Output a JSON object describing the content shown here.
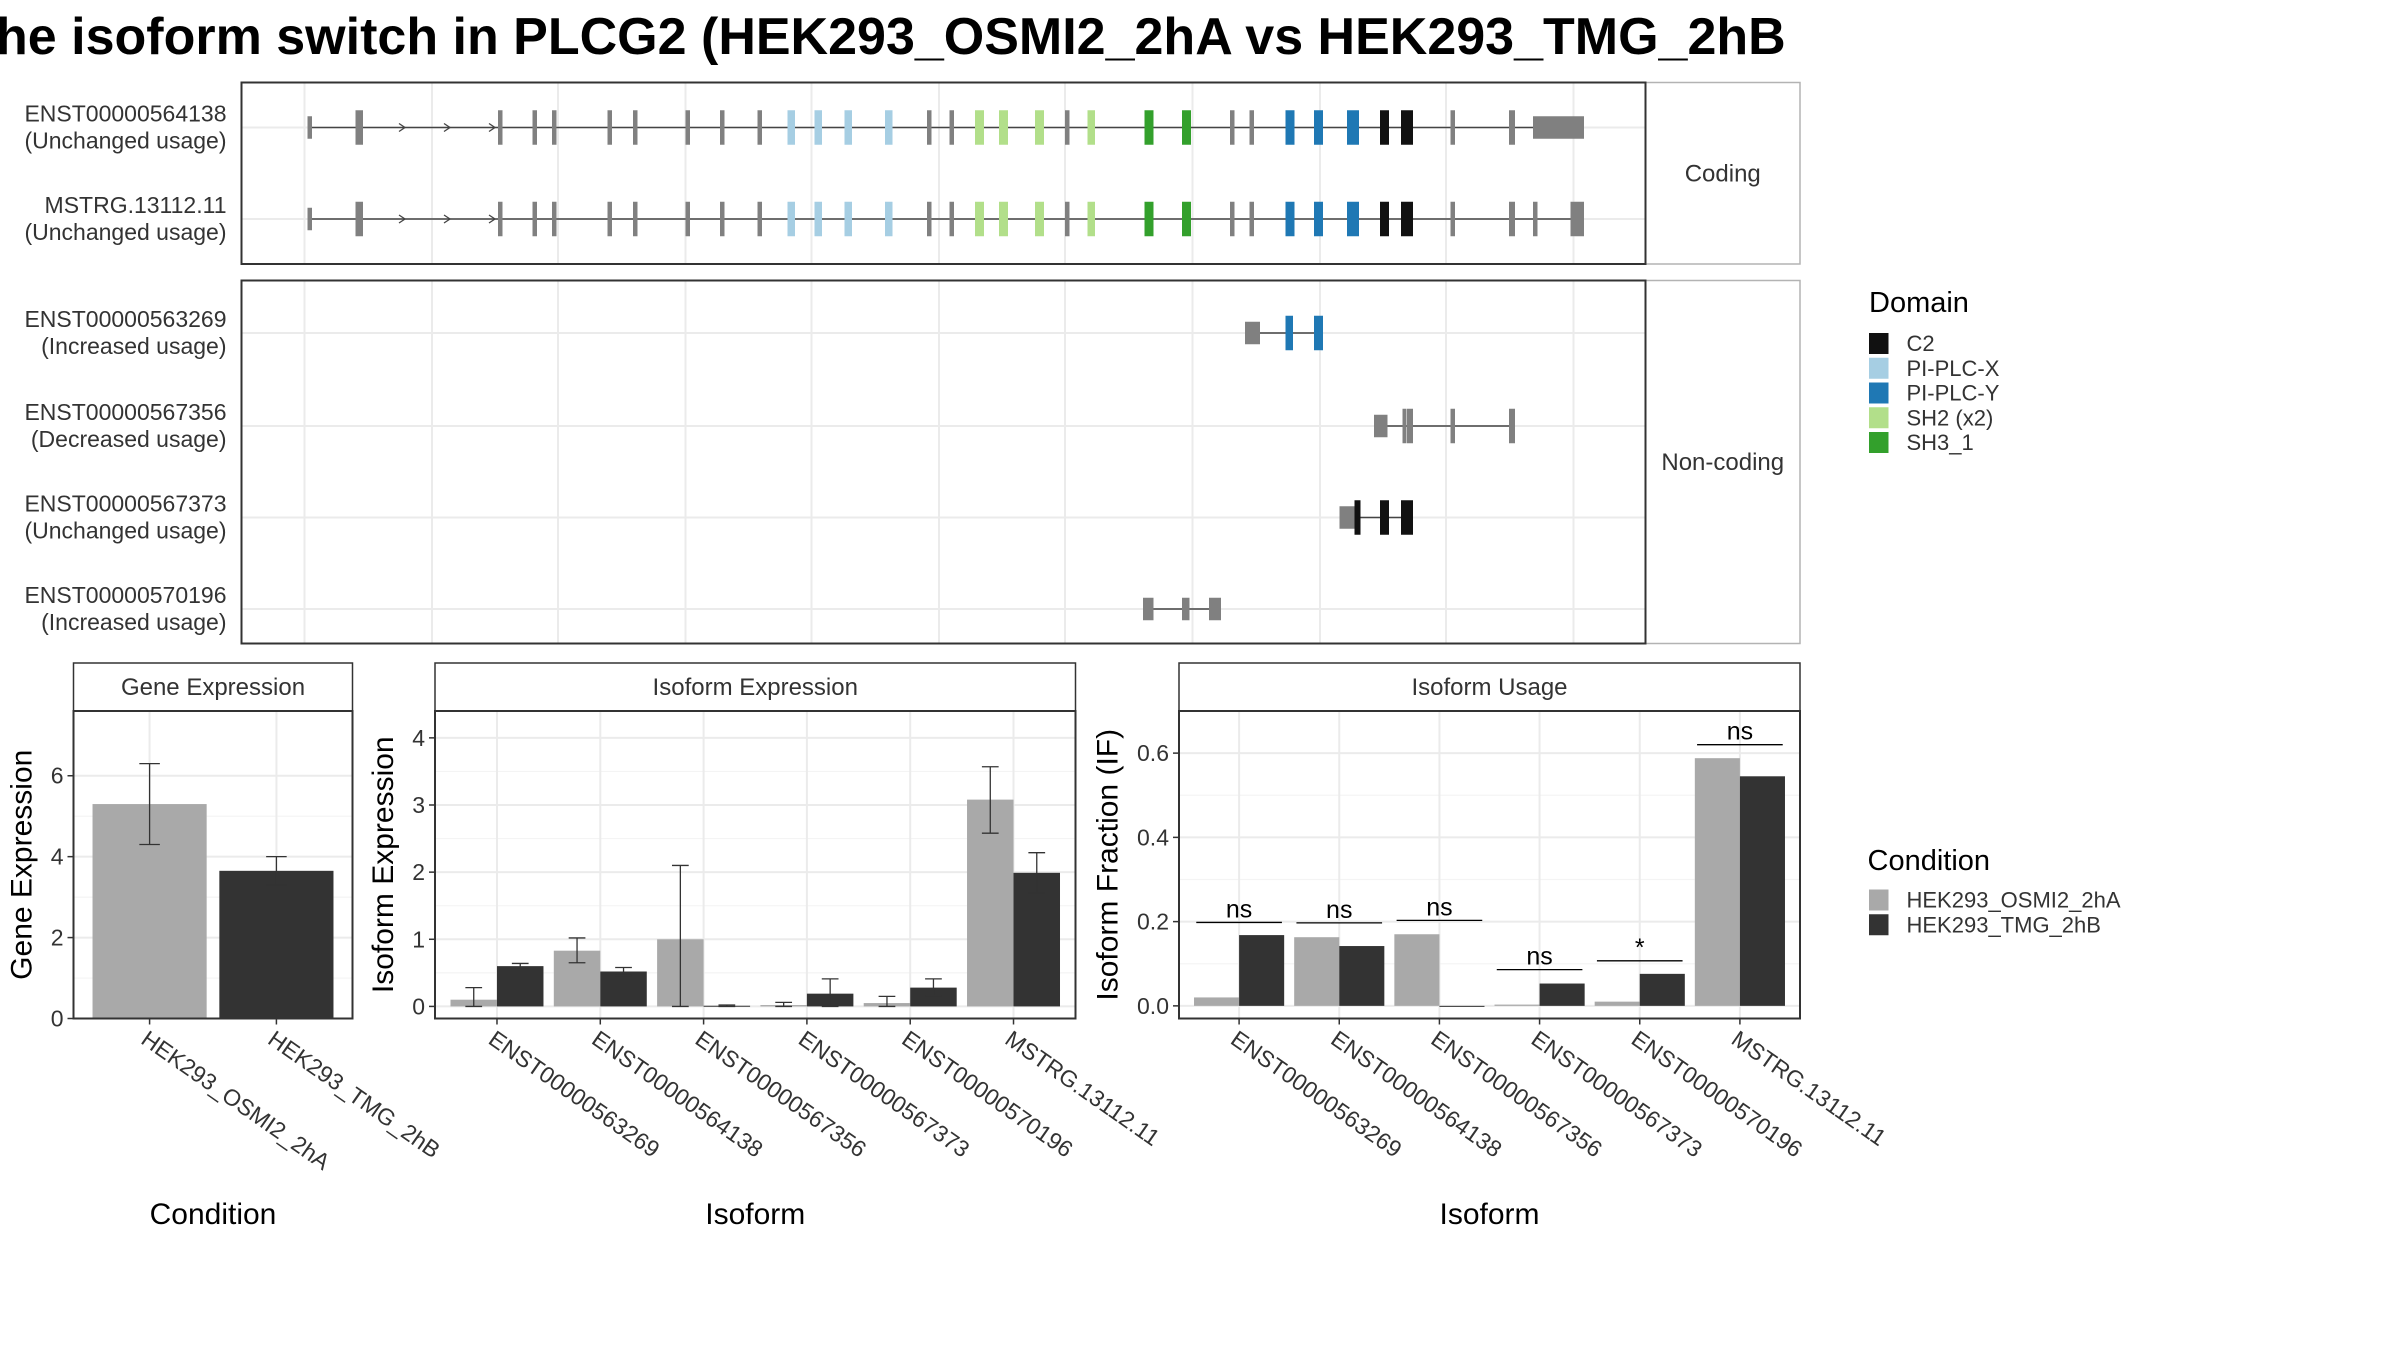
{
  "title": "he isoform switch in PLCG2 (HEK293_OSMI2_2hA vs HEK293_TMG_2hB",
  "structure": {
    "facets": [
      "Coding",
      "Non-coding"
    ],
    "domain_legend": {
      "title": "Domain",
      "items": [
        {
          "name": "C2",
          "color": "#111111"
        },
        {
          "name": "PI-PLC-X",
          "color": "#a6cee3"
        },
        {
          "name": "PI-PLC-Y",
          "color": "#1f78b4"
        },
        {
          "name": "SH2 (x2)",
          "color": "#b2df8a"
        },
        {
          "name": "SH3_1",
          "color": "#33a02c"
        }
      ]
    },
    "exon_color": "#808080",
    "transcripts": [
      {
        "id": "ENST00000564138",
        "usage": "(Unchanged usage)",
        "facet": "Coding",
        "exons": [
          [
            205,
            208,
            "n"
          ],
          [
            237,
            242,
            "n"
          ],
          [
            332,
            335,
            "n"
          ],
          [
            355,
            358,
            "n"
          ],
          [
            368,
            371,
            "n"
          ],
          [
            405,
            408,
            "n"
          ],
          [
            422,
            425,
            "n"
          ],
          [
            457,
            460,
            "n"
          ],
          [
            480,
            483,
            "n"
          ],
          [
            505,
            508,
            "n"
          ],
          [
            525,
            530,
            "X"
          ],
          [
            543,
            548,
            "X"
          ],
          [
            563,
            568,
            "X"
          ],
          [
            590,
            595,
            "X"
          ],
          [
            618,
            621,
            "n"
          ],
          [
            633,
            636,
            "n"
          ],
          [
            650,
            656,
            "S"
          ],
          [
            666,
            672,
            "S"
          ],
          [
            690,
            696,
            "S"
          ],
          [
            710,
            713,
            "n"
          ],
          [
            725,
            730,
            "S"
          ],
          [
            763,
            769,
            "H"
          ],
          [
            788,
            794,
            "H"
          ],
          [
            820,
            823,
            "n"
          ],
          [
            833,
            836,
            "n"
          ],
          [
            857,
            863,
            "Y"
          ],
          [
            876,
            882,
            "Y"
          ],
          [
            898,
            906,
            "Y"
          ],
          [
            920,
            926,
            "C"
          ],
          [
            934,
            942,
            "C"
          ],
          [
            967,
            970,
            "n"
          ],
          [
            1006,
            1010,
            "n"
          ],
          [
            1022,
            1056,
            "n"
          ]
        ],
        "thick_end_idx": 32
      },
      {
        "id": "MSTRG.13112.11",
        "usage": "(Unchanged usage)",
        "facet": "Coding",
        "exons": [
          [
            205,
            208,
            "n"
          ],
          [
            237,
            242,
            "n"
          ],
          [
            332,
            335,
            "n"
          ],
          [
            355,
            358,
            "n"
          ],
          [
            368,
            371,
            "n"
          ],
          [
            405,
            408,
            "n"
          ],
          [
            422,
            425,
            "n"
          ],
          [
            457,
            460,
            "n"
          ],
          [
            480,
            483,
            "n"
          ],
          [
            505,
            508,
            "n"
          ],
          [
            525,
            530,
            "X"
          ],
          [
            543,
            548,
            "X"
          ],
          [
            563,
            568,
            "X"
          ],
          [
            590,
            595,
            "X"
          ],
          [
            618,
            621,
            "n"
          ],
          [
            633,
            636,
            "n"
          ],
          [
            650,
            656,
            "S"
          ],
          [
            666,
            672,
            "S"
          ],
          [
            690,
            696,
            "S"
          ],
          [
            710,
            713,
            "n"
          ],
          [
            725,
            730,
            "S"
          ],
          [
            763,
            769,
            "H"
          ],
          [
            788,
            794,
            "H"
          ],
          [
            820,
            823,
            "n"
          ],
          [
            833,
            836,
            "n"
          ],
          [
            857,
            863,
            "Y"
          ],
          [
            876,
            882,
            "Y"
          ],
          [
            898,
            906,
            "Y"
          ],
          [
            920,
            926,
            "C"
          ],
          [
            934,
            942,
            "C"
          ],
          [
            967,
            970,
            "n"
          ],
          [
            1006,
            1010,
            "n"
          ],
          [
            1022,
            1025,
            "n"
          ],
          [
            1047,
            1056,
            "n"
          ]
        ]
      },
      {
        "id": "ENST00000563269",
        "usage": "(Increased usage)",
        "facet": "Non-coding",
        "exons": [
          [
            830,
            840,
            "t"
          ],
          [
            857,
            862,
            "Y"
          ],
          [
            876,
            882,
            "Y"
          ]
        ]
      },
      {
        "id": "ENST00000567356",
        "usage": "(Decreased usage)",
        "facet": "Non-coding",
        "exons": [
          [
            916,
            925,
            "t"
          ],
          [
            935,
            937,
            "n"
          ],
          [
            938,
            942,
            "n"
          ],
          [
            967,
            970,
            "n"
          ],
          [
            1006,
            1010,
            "n"
          ]
        ]
      },
      {
        "id": "ENST00000567373",
        "usage": "(Unchanged usage)",
        "facet": "Non-coding",
        "exons": [
          [
            893,
            903,
            "t"
          ],
          [
            903,
            907,
            "C"
          ],
          [
            920,
            926,
            "C"
          ],
          [
            934,
            942,
            "C"
          ]
        ]
      },
      {
        "id": "ENST00000570196",
        "usage": "(Increased usage)",
        "facet": "Non-coding",
        "exons": [
          [
            762,
            769,
            "t"
          ],
          [
            788,
            793,
            "t"
          ],
          [
            806,
            814,
            "t"
          ]
        ]
      }
    ]
  },
  "chart_data": [
    {
      "type": "bar",
      "panel": "Gene Expression",
      "xlabel": "Condition",
      "ylabel": "Gene Expression",
      "ylim": [
        0,
        7.6
      ],
      "yticks": [
        0,
        2,
        4,
        6
      ],
      "categories": [
        "HEK293_OSMI2_2hA",
        "HEK293_TMG_2hB"
      ],
      "values": [
        5.3,
        3.65
      ],
      "err_low": [
        4.3,
        3.3
      ],
      "err_high": [
        6.3,
        4.0
      ]
    },
    {
      "type": "bar",
      "panel": "Isoform Expression",
      "xlabel": "Isoform",
      "ylabel": "Isoform Expression",
      "ylim": [
        -0.18,
        4.4
      ],
      "yticks": [
        0,
        1,
        2,
        3,
        4
      ],
      "categories": [
        "ENST00000563269",
        "ENST00000564138",
        "ENST00000567356",
        "ENST00000567373",
        "ENST00000570196",
        "MSTRG.13112.11"
      ],
      "series": [
        {
          "name": "HEK293_OSMI2_2hA",
          "values": [
            0.1,
            0.83,
            1.0,
            0.02,
            0.05,
            3.08
          ],
          "err_low": [
            0.0,
            0.65,
            0.0,
            0.0,
            0.0,
            2.58
          ],
          "err_high": [
            0.28,
            1.02,
            2.1,
            0.06,
            0.15,
            3.57
          ]
        },
        {
          "name": "HEK293_TMG_2hB",
          "values": [
            0.6,
            0.52,
            0.01,
            0.19,
            0.28,
            1.99
          ],
          "err_low": [
            0.56,
            0.46,
            0.0,
            0.0,
            0.16,
            1.69
          ],
          "err_high": [
            0.64,
            0.58,
            0.02,
            0.41,
            0.41,
            2.29
          ]
        }
      ]
    },
    {
      "type": "bar",
      "panel": "Isoform Usage",
      "xlabel": "Isoform",
      "ylabel": "Isoform Fraction (IF)",
      "ylim": [
        -0.03,
        0.7
      ],
      "yticks": [
        0.0,
        0.2,
        0.4,
        0.6
      ],
      "categories": [
        "ENST00000563269",
        "ENST00000564138",
        "ENST00000567356",
        "ENST00000567373",
        "ENST00000570196",
        "MSTRG.13112.11"
      ],
      "series": [
        {
          "name": "HEK293_OSMI2_2hA",
          "values": [
            0.02,
            0.163,
            0.17,
            0.003,
            0.01,
            0.588
          ]
        },
        {
          "name": "HEK293_TMG_2hB",
          "values": [
            0.168,
            0.142,
            0.0,
            0.053,
            0.076,
            0.545
          ]
        }
      ],
      "significance": [
        "ns",
        "ns",
        "ns",
        "ns",
        "*",
        "ns"
      ],
      "sig_level": [
        0.198,
        0.197,
        0.203,
        0.086,
        0.107,
        0.62
      ]
    }
  ],
  "condition_legend": {
    "title": "Condition",
    "items": [
      {
        "name": "HEK293_OSMI2_2hA",
        "color": "#a9a9a9"
      },
      {
        "name": "HEK293_TMG_2hB",
        "color": "#333333"
      }
    ]
  }
}
